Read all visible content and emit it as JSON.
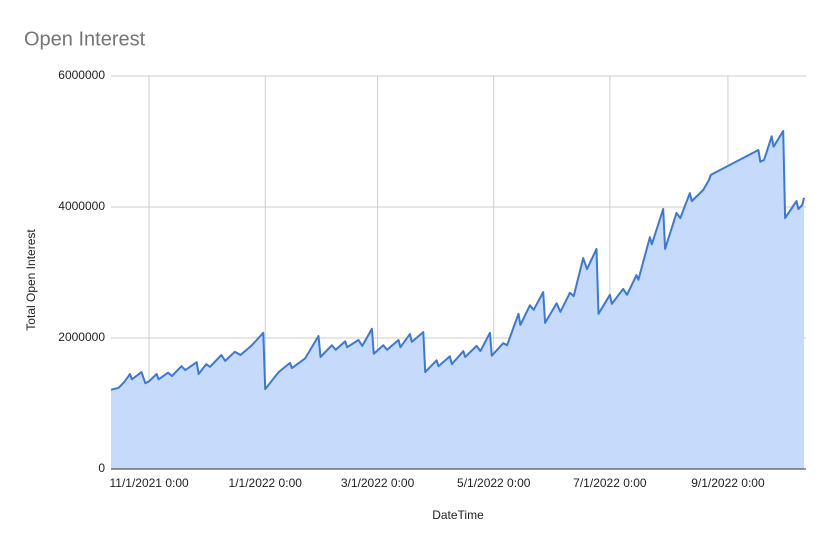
{
  "chart_data": {
    "type": "area",
    "title": "Open Interest",
    "x_label": "DateTime",
    "y_label": "Total Open Interest",
    "x": [
      "2021-10-12",
      "2021-10-16",
      "2021-10-19",
      "2021-10-22",
      "2021-10-23",
      "2021-10-28",
      "2021-10-30",
      "2021-11-01",
      "2021-11-05",
      "2021-11-06",
      "2021-11-11",
      "2021-11-13",
      "2021-11-18",
      "2021-11-20",
      "2021-11-26",
      "2021-11-27",
      "2021-12-01",
      "2021-12-03",
      "2021-12-09",
      "2021-12-11",
      "2021-12-16",
      "2021-12-19",
      "2021-12-25",
      "2021-12-31",
      "2022-01-01",
      "2022-01-08",
      "2022-01-14",
      "2022-01-15",
      "2022-01-22",
      "2022-01-29",
      "2022-01-30",
      "2022-02-05",
      "2022-02-07",
      "2022-02-12",
      "2022-02-13",
      "2022-02-19",
      "2022-02-21",
      "2022-02-26",
      "2022-02-27",
      "2022-03-04",
      "2022-03-06",
      "2022-03-12",
      "2022-03-13",
      "2022-03-18",
      "2022-03-19",
      "2022-03-25",
      "2022-03-26",
      "2022-04-01",
      "2022-04-02",
      "2022-04-08",
      "2022-04-09",
      "2022-04-15",
      "2022-04-16",
      "2022-04-22",
      "2022-04-24",
      "2022-04-29",
      "2022-04-30",
      "2022-05-06",
      "2022-05-08",
      "2022-05-14",
      "2022-05-15",
      "2022-05-20",
      "2022-05-22",
      "2022-05-27",
      "2022-05-28",
      "2022-06-03",
      "2022-06-05",
      "2022-06-10",
      "2022-06-12",
      "2022-06-17",
      "2022-06-19",
      "2022-06-24",
      "2022-06-25",
      "2022-07-01",
      "2022-07-02",
      "2022-07-08",
      "2022-07-10",
      "2022-07-15",
      "2022-07-16",
      "2022-07-22",
      "2022-07-23",
      "2022-07-29",
      "2022-07-30",
      "2022-08-05",
      "2022-08-07",
      "2022-08-12",
      "2022-08-13",
      "2022-08-19",
      "2022-08-22",
      "2022-08-23",
      "2022-09-17",
      "2022-09-18",
      "2022-09-20",
      "2022-09-24",
      "2022-09-25",
      "2022-09-30",
      "2022-10-01",
      "2022-10-07",
      "2022-10-08",
      "2022-10-10",
      "2022-10-11"
    ],
    "values": [
      1210000,
      1240000,
      1330000,
      1450000,
      1370000,
      1480000,
      1310000,
      1340000,
      1450000,
      1370000,
      1470000,
      1420000,
      1570000,
      1510000,
      1630000,
      1450000,
      1600000,
      1560000,
      1740000,
      1650000,
      1790000,
      1740000,
      1890000,
      2080000,
      1220000,
      1480000,
      1620000,
      1540000,
      1690000,
      2030000,
      1710000,
      1890000,
      1820000,
      1950000,
      1860000,
      1970000,
      1880000,
      2140000,
      1760000,
      1890000,
      1820000,
      1970000,
      1860000,
      2060000,
      1940000,
      2090000,
      1480000,
      1660000,
      1570000,
      1720000,
      1600000,
      1800000,
      1710000,
      1880000,
      1800000,
      2080000,
      1730000,
      1920000,
      1890000,
      2370000,
      2200000,
      2500000,
      2430000,
      2700000,
      2230000,
      2530000,
      2400000,
      2690000,
      2640000,
      3220000,
      3050000,
      3360000,
      2370000,
      2660000,
      2520000,
      2750000,
      2660000,
      2960000,
      2890000,
      3540000,
      3430000,
      3970000,
      3360000,
      3910000,
      3830000,
      4210000,
      4090000,
      4260000,
      4410000,
      4490000,
      4870000,
      4690000,
      4720000,
      5080000,
      4920000,
      5160000,
      3830000,
      4090000,
      3970000,
      4030000,
      4140000
    ],
    "color": "#3c78d8",
    "fill_color": "#c6dafc",
    "xlim": [
      "2021-10-12",
      "2022-10-12"
    ],
    "xticks": [
      {
        "value": "2021-11-01",
        "label": "11/1/2021 0:00"
      },
      {
        "value": "2022-01-01",
        "label": "1/1/2022 0:00"
      },
      {
        "value": "2022-03-01",
        "label": "3/1/2022 0:00"
      },
      {
        "value": "2022-05-01",
        "label": "5/1/2022 0:00"
      },
      {
        "value": "2022-07-01",
        "label": "7/1/2022 0:00"
      },
      {
        "value": "2022-09-01",
        "label": "9/1/2022 0:00"
      }
    ],
    "ylim": [
      0,
      6000000
    ],
    "yticks": [
      0,
      2000000,
      4000000,
      6000000
    ],
    "grid": true
  }
}
